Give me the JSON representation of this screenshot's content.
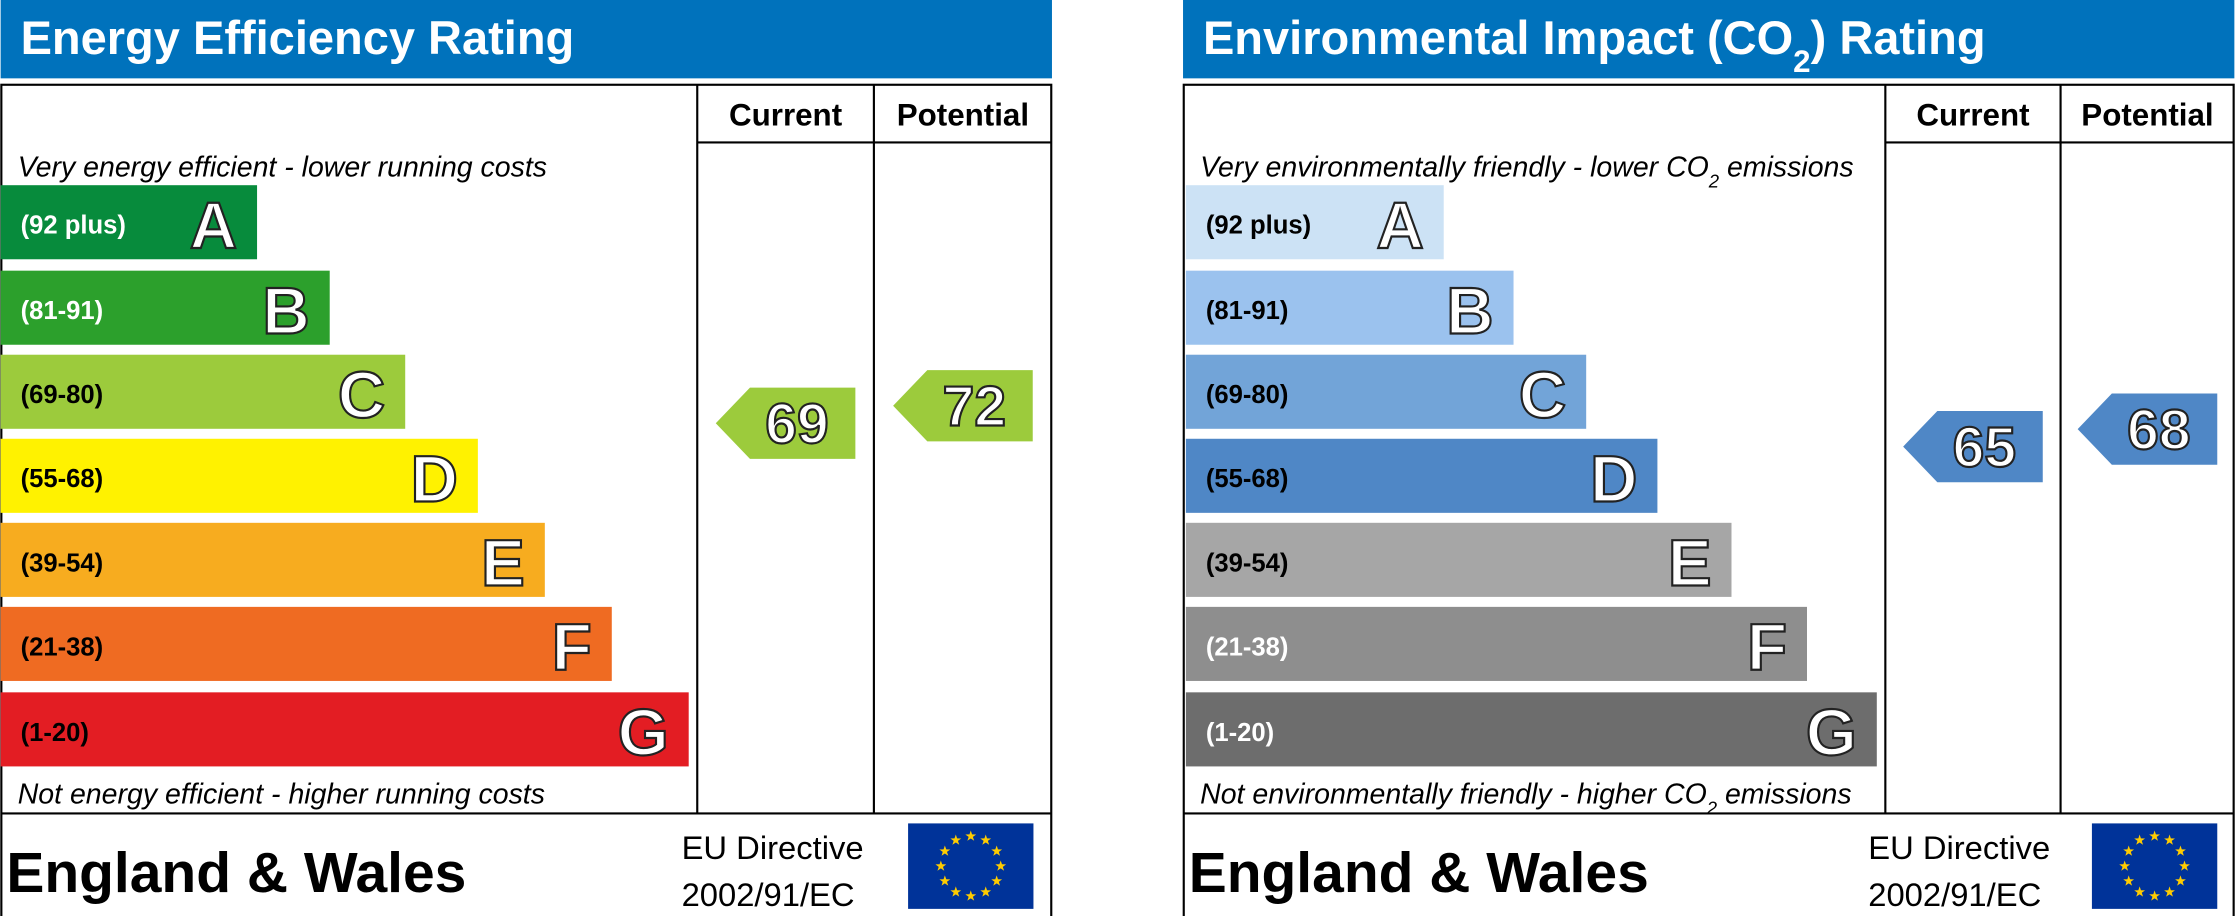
{
  "panels": [
    {
      "title": [
        "Energy Efficiency Rating"
      ],
      "columns": [
        "Current",
        "Potential"
      ],
      "top_note": [
        "Very energy efficient - lower running costs"
      ],
      "bottom_note": [
        "Not energy efficient - higher running costs"
      ],
      "bands": [
        {
          "range": "(92 plus)",
          "letter": "A",
          "color": "#078b3c",
          "text_color": "#ffffff"
        },
        {
          "range": "(81-91)",
          "letter": "B",
          "color": "#2ca02c",
          "text_color": "#ffffff"
        },
        {
          "range": "(69-80)",
          "letter": "C",
          "color": "#9ccb3c",
          "text_color": "#000000"
        },
        {
          "range": "(55-68)",
          "letter": "D",
          "color": "#fff200",
          "text_color": "#000000"
        },
        {
          "range": "(39-54)",
          "letter": "E",
          "color": "#f7ac1f",
          "text_color": "#000000"
        },
        {
          "range": "(21-38)",
          "letter": "F",
          "color": "#ef6b22",
          "text_color": "#000000"
        },
        {
          "range": "(1-20)",
          "letter": "G",
          "color": "#e31d23",
          "text_color": "#000000"
        }
      ],
      "current": 69,
      "potential": 72,
      "footer": "England & Wales",
      "directive": [
        "EU Directive",
        "2002/91/EC"
      ]
    },
    {
      "title": [
        "Environmental Impact (CO",
        "2",
        ") Rating"
      ],
      "columns": [
        "Current",
        "Potential"
      ],
      "top_note": [
        "Very environmentally friendly - lower CO",
        "2",
        " emissions"
      ],
      "bottom_note": [
        "Not environmentally friendly - higher CO",
        "2",
        " emissions"
      ],
      "bands": [
        {
          "range": "(92 plus)",
          "letter": "A",
          "color": "#cce2f5",
          "text_color": "#000000"
        },
        {
          "range": "(81-91)",
          "letter": "B",
          "color": "#9bc2ee",
          "text_color": "#000000"
        },
        {
          "range": "(69-80)",
          "letter": "C",
          "color": "#72a4d8",
          "text_color": "#000000"
        },
        {
          "range": "(55-68)",
          "letter": "D",
          "color": "#4f87c6",
          "text_color": "#000000"
        },
        {
          "range": "(39-54)",
          "letter": "E",
          "color": "#a6a6a6",
          "text_color": "#000000"
        },
        {
          "range": "(21-38)",
          "letter": "F",
          "color": "#8e8e8e",
          "text_color": "#ffffff"
        },
        {
          "range": "(1-20)",
          "letter": "G",
          "color": "#6d6d6d",
          "text_color": "#ffffff"
        }
      ],
      "current": 65,
      "potential": 68,
      "footer": "England & Wales",
      "directive": [
        "EU Directive",
        "2002/91/EC"
      ]
    }
  ]
}
